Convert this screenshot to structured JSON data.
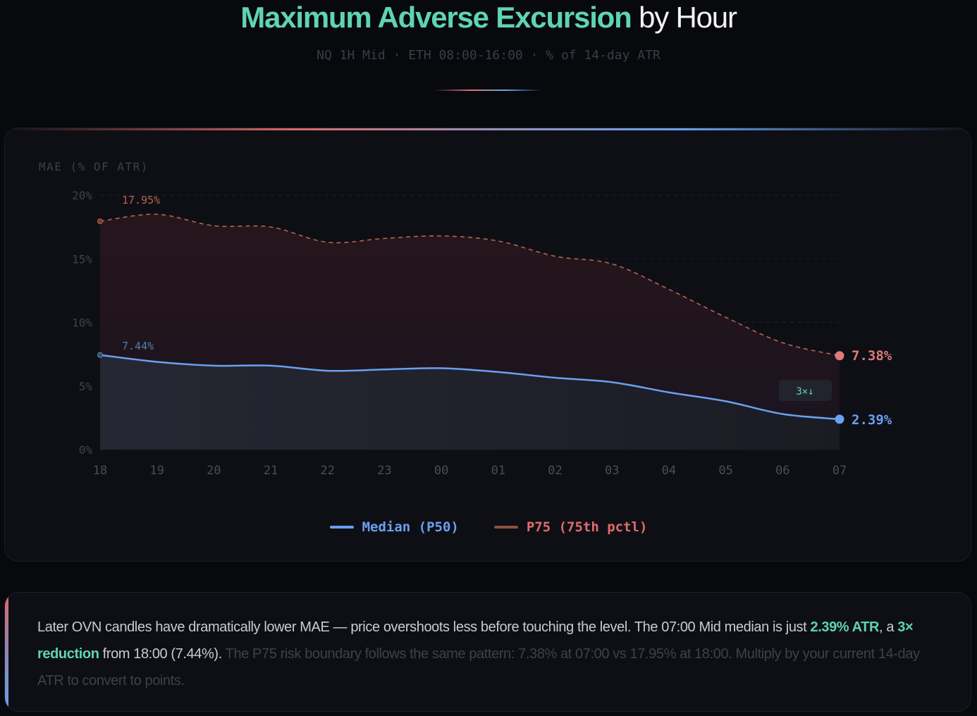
{
  "header": {
    "title_highlight": "Maximum Adverse Excursion",
    "title_rest": "by Hour",
    "subtitle": "NQ 1H Mid · ETH 08:00-16:00 · % of 14-day ATR"
  },
  "colors": {
    "accent": "#5fd3b5",
    "median": "#6aa0f0",
    "p75_line": "#b46450",
    "p75_label": "#e06c6c",
    "background": "#08090d",
    "card": "#0e0f15"
  },
  "chart_data": {
    "type": "area",
    "ylabel": "MAE (% OF ATR)",
    "ylim": [
      0,
      20
    ],
    "yticks": [
      "0%",
      "5%",
      "10%",
      "15%",
      "20%"
    ],
    "ytick_values": [
      0,
      5,
      10,
      15,
      20
    ],
    "grid": true,
    "legend_placement": "bottom-center",
    "categories": [
      "18",
      "19",
      "20",
      "21",
      "22",
      "23",
      "00",
      "01",
      "02",
      "03",
      "04",
      "05",
      "06",
      "07"
    ],
    "series": [
      {
        "name": "Median (P50)",
        "style": "solid",
        "values": [
          7.44,
          6.9,
          6.6,
          6.6,
          6.2,
          6.3,
          6.4,
          6.1,
          5.65,
          5.3,
          4.5,
          3.8,
          2.8,
          2.39
        ]
      },
      {
        "name": "P75 (75th pctl)",
        "style": "dashed",
        "values": [
          17.95,
          18.5,
          17.6,
          17.5,
          16.3,
          16.6,
          16.8,
          16.4,
          15.2,
          14.6,
          12.6,
          10.4,
          8.4,
          7.38
        ]
      }
    ],
    "annotations": {
      "p75_start": "17.95%",
      "median_start": "7.44%",
      "p75_end": "7.38%",
      "median_end": "2.39%",
      "reduction_badge": "3×↓"
    }
  },
  "legend": {
    "median": "Median (P50)",
    "p75": "P75 (75th pctl)"
  },
  "note": {
    "line1": "Later OVN candles have dramatically lower MAE — price overshoots less before touching the level. The 07:00 Mid median is just ",
    "hl1": "2.39% ATR",
    "mid1": ", a ",
    "hl2": "3× reduction",
    "mid2": " from 18:00 (7.44%).",
    "dim": " The P75 risk boundary follows the same pattern: 7.38% at 07:00 vs 17.95% at 18:00. Multiply by your current 14-day ATR to convert to points."
  }
}
